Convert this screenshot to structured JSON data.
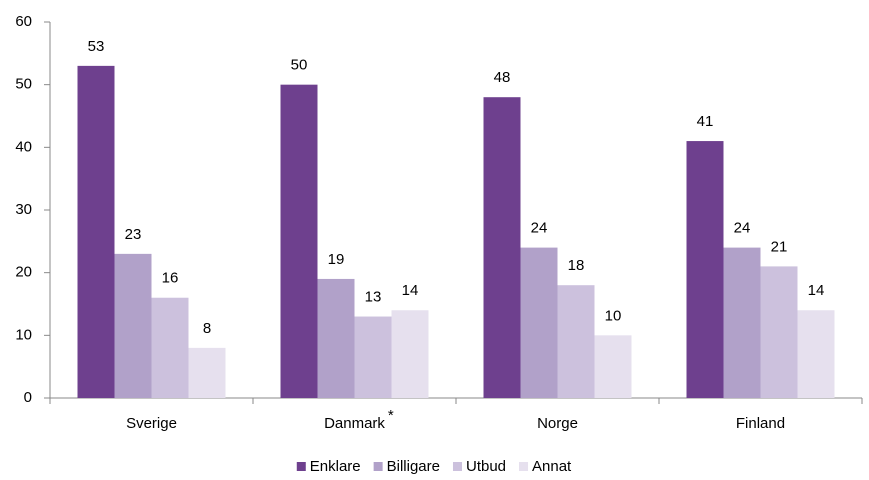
{
  "chart_data": {
    "type": "bar",
    "categories": [
      "Sverige",
      "Danmark",
      "Norge",
      "Finland"
    ],
    "annotations": [
      "*"
    ],
    "series": [
      {
        "name": "Enklare",
        "color": "#6e408e",
        "values": [
          53,
          50,
          48,
          41
        ]
      },
      {
        "name": "Billigare",
        "color": "#b1a1c9",
        "values": [
          23,
          19,
          24,
          24
        ]
      },
      {
        "name": "Utbud",
        "color": "#ccc1dd",
        "values": [
          16,
          13,
          18,
          21
        ]
      },
      {
        "name": "Annat",
        "color": "#e6e0ee",
        "values": [
          8,
          14,
          10,
          14
        ]
      }
    ],
    "ylim": [
      0,
      60
    ],
    "yticks": [
      0,
      10,
      20,
      30,
      40,
      50,
      60
    ],
    "grid": false,
    "legend": "bottom"
  }
}
